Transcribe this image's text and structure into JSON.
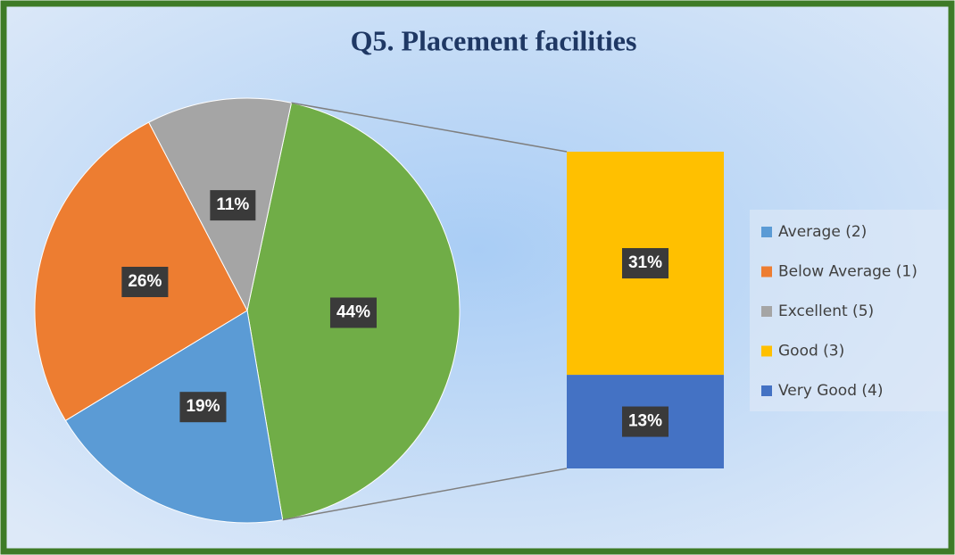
{
  "chart_data": {
    "type": "pie",
    "title": "Q5. Placement facilities",
    "categories": [
      "Average (2)",
      "Below Average (1)",
      "Excellent (5)",
      "Good (3)",
      "Very Good (4)"
    ],
    "values": [
      19,
      26,
      11,
      31,
      13
    ],
    "value_labels": [
      "19%",
      "26%",
      "11%",
      "31%",
      "13%"
    ],
    "colors": [
      "#5b9bd5",
      "#ed7d31",
      "#a5a5a5",
      "#ffc000",
      "#4472c4"
    ],
    "secondary": [
      3,
      4
    ],
    "combined": {
      "value": 44,
      "label": "44%",
      "color": "#70ad47"
    },
    "legend": "right"
  }
}
